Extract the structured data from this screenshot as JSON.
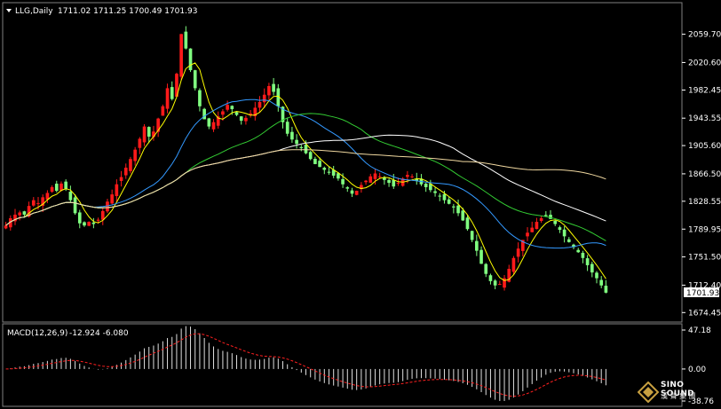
{
  "main_header": {
    "symbol": "LLG,Daily",
    "ohlc": "1711.02 1711.25 1700.49 1701.93"
  },
  "macd_header": {
    "label": "MACD(12,26,9)",
    "values": "-12.924 -6.080"
  },
  "brand": {
    "name": "SINO SOUND",
    "sub": "漢 聲 集 團"
  },
  "colors": {
    "background": "#000000",
    "bull": "#ff1a1a",
    "bear": "#80ff80",
    "grid_text": "#ffffff",
    "ma5": "#ffff00",
    "ma_blue": "#3399ff",
    "ma_green": "#33cc33",
    "ma_white": "#ffffff",
    "ma_tan": "#f0d8a0",
    "macd_signal": "#ff2020"
  },
  "chart_data": [
    {
      "type": "candlestick",
      "title": "LLG,Daily",
      "y_ticks": [
        "2059.70",
        "2020.60",
        "1982.45",
        "1943.55",
        "1905.60",
        "1866.50",
        "1828.55",
        "1789.95",
        "1751.50",
        "1712.40",
        "1674.45"
      ],
      "ylim": [
        1665,
        2085
      ],
      "last_price": "1701.93",
      "close": [
        1795,
        1805,
        1810,
        1813,
        1810,
        1822,
        1830,
        1826,
        1834,
        1840,
        1848,
        1843,
        1853,
        1846,
        1830,
        1812,
        1798,
        1795,
        1800,
        1797,
        1803,
        1815,
        1828,
        1838,
        1852,
        1862,
        1875,
        1887,
        1900,
        1915,
        1932,
        1918,
        1925,
        1943,
        1960,
        1985,
        1970,
        2005,
        2060,
        2040,
        2010,
        1985,
        1960,
        1942,
        1932,
        1938,
        1946,
        1953,
        1962,
        1956,
        1948,
        1940,
        1944,
        1950,
        1958,
        1966,
        1976,
        1988,
        1980,
        1960,
        1938,
        1922,
        1914,
        1908,
        1902,
        1895,
        1887,
        1880,
        1876,
        1872,
        1868,
        1864,
        1860,
        1852,
        1846,
        1839,
        1843,
        1851,
        1857,
        1863,
        1867,
        1863,
        1858,
        1854,
        1849,
        1854,
        1860,
        1865,
        1863,
        1857,
        1852,
        1848,
        1844,
        1840,
        1836,
        1830,
        1825,
        1820,
        1812,
        1802,
        1790,
        1775,
        1760,
        1742,
        1728,
        1718,
        1712,
        1714,
        1722,
        1735,
        1750,
        1763,
        1775,
        1785,
        1792,
        1800,
        1805,
        1808,
        1804,
        1797,
        1789,
        1780,
        1772,
        1765,
        1758,
        1750,
        1740,
        1730,
        1722,
        1712,
        1702
      ],
      "ma_lines": [
        {
          "name": "MA5",
          "color": "#ffff00"
        },
        {
          "name": "MA20",
          "color": "#3399ff"
        },
        {
          "name": "MA40",
          "color": "#33cc33"
        },
        {
          "name": "MA60",
          "color": "#ffffff"
        },
        {
          "name": "MA100",
          "color": "#f0d8a0"
        }
      ]
    },
    {
      "type": "bar",
      "title": "MACD(12,26,9)",
      "y_ticks": [
        "47.18",
        "0.00",
        "-38.76"
      ],
      "ylim": [
        -38.76,
        47.18
      ]
    }
  ]
}
